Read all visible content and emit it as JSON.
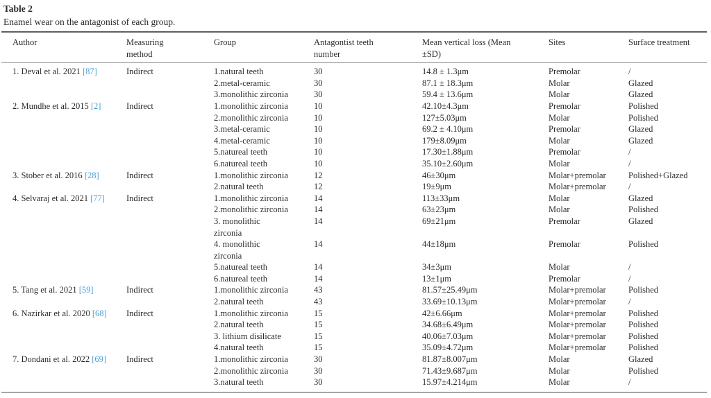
{
  "page": {
    "title": "Table 2",
    "caption": "Enamel wear on the antagonist of each group."
  },
  "colors": {
    "citation_link": "#4aa1d9",
    "text": "#2b2b2b",
    "rule_top": "#5f5f5f",
    "rule_header": "#999999",
    "rule_bottom": "#a6a6a6"
  },
  "table": {
    "columns": [
      "Author",
      "Measuring\nmethod",
      "Group",
      "Antagontist teeth\nnumber",
      "Mean vertical loss (Mean\n±SD)",
      "Sites",
      "Surface treatment"
    ],
    "studies": [
      {
        "author": "1. Deval et al. 2021",
        "ref": "[87]",
        "method": "Indirect",
        "groups": [
          {
            "group": "1.natural teeth",
            "n": "30",
            "loss": "14.8 ± 1.3μm",
            "sites": "Premolar",
            "treatment": "/"
          },
          {
            "group": "2.metal-ceramic",
            "n": "30",
            "loss": "87.1 ± 18.3μm",
            "sites": "Molar",
            "treatment": "Glazed"
          },
          {
            "group": "3.monolithic zirconia",
            "n": "30",
            "loss": "59.4 ± 13.6μm",
            "sites": "Molar",
            "treatment": "Glazed"
          }
        ]
      },
      {
        "author": "2. Mundhe et al. 2015",
        "ref": "[2]",
        "method": "Indirect",
        "groups": [
          {
            "group": "1.monolithic zirconia",
            "n": "10",
            "loss": "42.10±4.3μm",
            "sites": "Premolar",
            "treatment": "Polished"
          },
          {
            "group": "2.monolithic zirconia",
            "n": "10",
            "loss": "127±5.03μm",
            "sites": "Molar",
            "treatment": "Polished"
          },
          {
            "group": "3.metal-ceramic",
            "n": "10",
            "loss": "69.2 ± 4.10μm",
            "sites": "Premolar",
            "treatment": "Glazed"
          },
          {
            "group": "4.metal-ceramic",
            "n": "10",
            "loss": "179±8.09μm",
            "sites": "Molar",
            "treatment": "Glazed"
          },
          {
            "group": "5.natureal teeth",
            "n": "10",
            "loss": "17.30±1.88μm",
            "sites": "Premolar",
            "treatment": "/"
          },
          {
            "group": "6.natureal teeth",
            "n": "10",
            "loss": "35.10±2.60μm",
            "sites": "Molar",
            "treatment": "/"
          }
        ]
      },
      {
        "author": "3. Stober et al. 2016",
        "ref": "[28]",
        "method": "Indirect",
        "groups": [
          {
            "group": "1.monolithic zirconia",
            "n": "12",
            "loss": "46±30μm",
            "sites": "Molar+premolar",
            "treatment": "Polished+Glazed"
          },
          {
            "group": "2.natural teeth",
            "n": "12",
            "loss": "19±9μm",
            "sites": "Molar+premolar",
            "treatment": "/"
          }
        ]
      },
      {
        "author": "4. Selvaraj et al. 2021",
        "ref": "[77]",
        "method": "Indirect",
        "groups": [
          {
            "group": "1.monolithic zirconia",
            "n": "14",
            "loss": "113±33μm",
            "sites": "Molar",
            "treatment": "Glazed"
          },
          {
            "group": "2.monolithic zirconia",
            "n": "14",
            "loss": "63±23μm",
            "sites": "Molar",
            "treatment": "Polished"
          },
          {
            "group": "3. monolithic\nzirconia",
            "n": "14",
            "loss": "69±21μm",
            "sites": "Premolar",
            "treatment": "Glazed"
          },
          {
            "group": "4. monolithic\nzirconia",
            "n": "14",
            "loss": "44±18μm",
            "sites": "Premolar",
            "treatment": "Polished"
          },
          {
            "group": "5.natureal teeth",
            "n": "14",
            "loss": "34±3μm",
            "sites": "Molar",
            "treatment": "/"
          },
          {
            "group": "6.natureal teeth",
            "n": "14",
            "loss": "13±1μm",
            "sites": "Premolar",
            "treatment": "/"
          }
        ]
      },
      {
        "author": "5. Tang et al. 2021",
        "ref": "[59]",
        "method": "Indirect",
        "groups": [
          {
            "group": "1.monolithic zirconia",
            "n": "43",
            "loss": "81.57±25.49μm",
            "sites": "Molar+premolar",
            "treatment": "Polished"
          },
          {
            "group": "2.natural teeth",
            "n": "43",
            "loss": "33.69±10.13μm",
            "sites": "Molar+premolar",
            "treatment": "/"
          }
        ]
      },
      {
        "author": "6. Nazirkar et al. 2020",
        "ref": "[68]",
        "method": "Indirect",
        "groups": [
          {
            "group": "1.monolithic zirconia",
            "n": "15",
            "loss": "42±6.66μm",
            "sites": "Molar+premolar",
            "treatment": "Polished"
          },
          {
            "group": "2.natural teeth",
            "n": "15",
            "loss": "34.68±6.49μm",
            "sites": "Molar+premolar",
            "treatment": "Polished"
          },
          {
            "group": "3. lithium disilicate",
            "n": "15",
            "loss": "40.06±7.03μm",
            "sites": "Molar+premolar",
            "treatment": "Polished"
          },
          {
            "group": "4.natural teeth",
            "n": "15",
            "loss": "35.09±4.72μm",
            "sites": "Molar+premolar",
            "treatment": "Polished"
          }
        ]
      },
      {
        "author": "7. Dondani et al. 2022",
        "ref": "[69]",
        "method": "Indirect",
        "groups": [
          {
            "group": "1.monolithic zirconia",
            "n": "30",
            "loss": "81.87±8.007μm",
            "sites": "Molar",
            "treatment": "Glazed"
          },
          {
            "group": "2.monolithic zirconia",
            "n": "30",
            "loss": "71.43±9.687μm",
            "sites": "Molar",
            "treatment": "Polished"
          },
          {
            "group": "3.natural teeth",
            "n": "30",
            "loss": "15.97±4.214μm",
            "sites": "Molar",
            "treatment": "/"
          }
        ]
      }
    ]
  }
}
